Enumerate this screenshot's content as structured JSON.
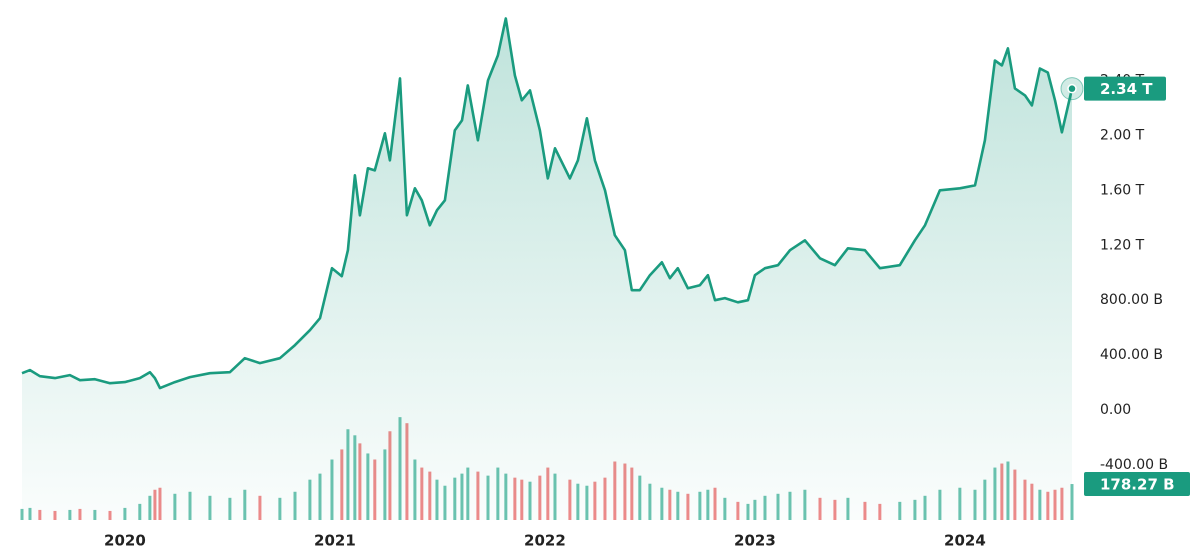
{
  "chart_data": {
    "type": "area",
    "line_color": "#1a9b7f",
    "up_color": "#6cc3b0",
    "down_color": "#f08a8a",
    "xlim": [
      2019.51,
      2024.51
    ],
    "xticks": [
      2020,
      2021,
      2022,
      2023,
      2024
    ],
    "ylim": [
      -800,
      3000
    ],
    "yticks": [
      {
        "value": -400,
        "label": "-400.00 B"
      },
      {
        "value": 0,
        "label": "0.00"
      },
      {
        "value": 400,
        "label": "400.00 B"
      },
      {
        "value": 800,
        "label": "800.00 B"
      },
      {
        "value": 1200,
        "label": "1.20 T"
      },
      {
        "value": 1600,
        "label": "1.60 T"
      },
      {
        "value": 2000,
        "label": "2.00 T"
      },
      {
        "value": 2400,
        "label": "2.40 T"
      }
    ],
    "vlim": [
      0,
      600
    ],
    "x": [
      2019.51,
      2019.548,
      2019.595,
      2019.667,
      2019.738,
      2019.786,
      2019.857,
      2019.929,
      2020.0,
      2020.071,
      2020.119,
      2020.143,
      2020.167,
      2020.238,
      2020.31,
      2020.405,
      2020.5,
      2020.571,
      2020.643,
      2020.738,
      2020.81,
      2020.881,
      2020.929,
      2020.986,
      2021.033,
      2021.062,
      2021.095,
      2021.119,
      2021.157,
      2021.19,
      2021.238,
      2021.262,
      2021.31,
      2021.343,
      2021.381,
      2021.414,
      2021.452,
      2021.486,
      2021.524,
      2021.571,
      2021.605,
      2021.633,
      2021.681,
      2021.729,
      2021.776,
      2021.814,
      2021.857,
      2021.89,
      2021.929,
      2021.976,
      2022.014,
      2022.048,
      2022.119,
      2022.157,
      2022.2,
      2022.238,
      2022.286,
      2022.333,
      2022.381,
      2022.414,
      2022.452,
      2022.5,
      2022.557,
      2022.595,
      2022.633,
      2022.681,
      2022.738,
      2022.776,
      2022.81,
      2022.857,
      2022.919,
      2022.967,
      2023.0,
      2023.048,
      2023.11,
      2023.167,
      2023.238,
      2023.31,
      2023.381,
      2023.443,
      2023.524,
      2023.595,
      2023.69,
      2023.762,
      2023.81,
      2023.881,
      2023.976,
      2024.048,
      2024.095,
      2024.143,
      2024.176,
      2024.205,
      2024.238,
      2024.286,
      2024.319,
      2024.357,
      2024.395,
      2024.429,
      2024.462,
      2024.51
    ],
    "values": [
      269,
      291,
      247,
      233,
      255,
      218,
      225,
      196,
      204,
      233,
      276,
      233,
      160,
      204,
      240,
      269,
      276,
      378,
      342,
      378,
      473,
      582,
      669,
      1033,
      975,
      1164,
      1709,
      1418,
      1760,
      1745,
      2015,
      1818,
      2415,
      1418,
      1615,
      1527,
      1345,
      1455,
      1527,
      2036,
      2109,
      2364,
      1964,
      2400,
      2582,
      2851,
      2436,
      2255,
      2327,
      2036,
      1687,
      1906,
      1687,
      1818,
      2124,
      1818,
      1600,
      1273,
      1164,
      873,
      873,
      982,
      1076,
      960,
      1033,
      887,
      909,
      982,
      800,
      815,
      785,
      800,
      982,
      1033,
      1055,
      1164,
      1236,
      1105,
      1055,
      1178,
      1164,
      1033,
      1055,
      1236,
      1345,
      1600,
      1615,
      1636,
      1964,
      2545,
      2509,
      2633,
      2342,
      2291,
      2218,
      2487,
      2458,
      2255,
      2022,
      2340
    ],
    "volume": [
      55,
      60,
      50,
      45,
      50,
      55,
      50,
      45,
      60,
      80,
      120,
      150,
      160,
      130,
      140,
      120,
      110,
      150,
      120,
      110,
      140,
      200,
      230,
      300,
      350,
      450,
      420,
      380,
      330,
      300,
      350,
      440,
      510,
      480,
      300,
      260,
      240,
      200,
      170,
      210,
      230,
      260,
      240,
      220,
      260,
      230,
      210,
      200,
      190,
      220,
      260,
      230,
      200,
      180,
      170,
      190,
      210,
      290,
      280,
      260,
      220,
      180,
      160,
      150,
      140,
      130,
      140,
      150,
      160,
      110,
      90,
      80,
      100,
      120,
      130,
      140,
      150,
      110,
      100,
      110,
      90,
      80,
      90,
      100,
      120,
      150,
      160,
      150,
      200,
      260,
      280,
      290,
      250,
      200,
      180,
      150,
      140,
      150,
      160,
      178.27
    ],
    "price_badge": {
      "value": 2340,
      "label": "2.34 T"
    },
    "volume_badge": {
      "value": 178.27,
      "label": "178.27 B"
    }
  }
}
